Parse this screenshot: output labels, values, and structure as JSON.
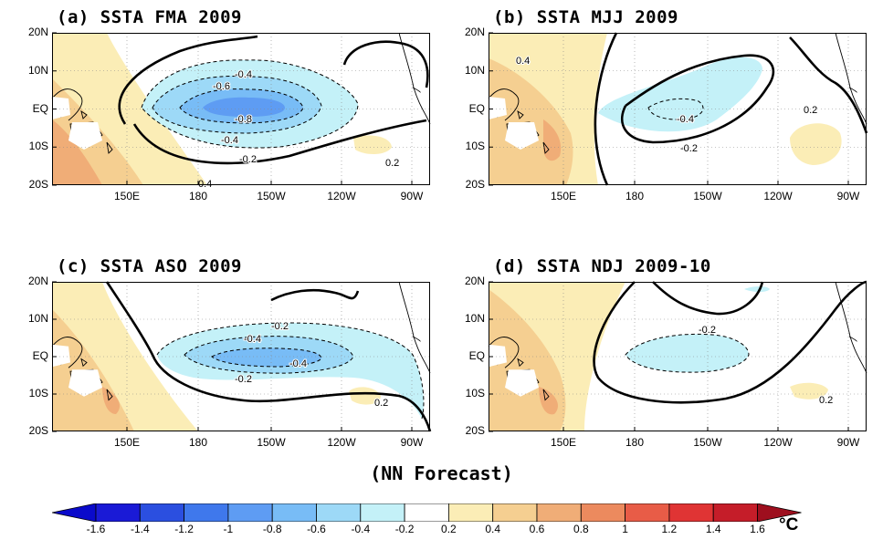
{
  "panels": [
    {
      "id": "a",
      "title": "(a) SSTA FMA 2009",
      "labels": [
        "-0.4",
        "-0.6",
        "-0.8",
        "-0.4",
        "-0.2",
        "0.2",
        "0.4"
      ]
    },
    {
      "id": "b",
      "title": "(b) SSTA MJJ 2009",
      "labels": [
        "0.4",
        "-0.4",
        "-0.2",
        "0.2"
      ]
    },
    {
      "id": "c",
      "title": "(c) SSTA ASO 2009",
      "labels": [
        "-0.2",
        "-0.4",
        "-0.4",
        "-0.2",
        "0.2"
      ]
    },
    {
      "id": "d",
      "title": "(d) SSTA NDJ 2009-10",
      "labels": [
        "-0.2",
        "0.2"
      ]
    }
  ],
  "lat_labels": [
    "20N",
    "10N",
    "EQ",
    "10S",
    "20S"
  ],
  "lon_labels": [
    "150E",
    "180",
    "150W",
    "120W",
    "90W"
  ],
  "footer": "(NN Forecast)",
  "colorbar": {
    "ticks": [
      "-1.6",
      "-1.4",
      "-1.2",
      "-1",
      "-0.8",
      "-0.6",
      "-0.4",
      "-0.2",
      "0.2",
      "0.4",
      "0.6",
      "0.8",
      "1",
      "1.2",
      "1.4",
      "1.6"
    ],
    "colors": [
      "#1a1ad6",
      "#2b4fe0",
      "#3f78ec",
      "#5e9cf3",
      "#78bcf6",
      "#9dd9f7",
      "#c4f1f8",
      "#ffffff",
      "#fbedb6",
      "#f5cf91",
      "#f0ad77",
      "#ec8a5e",
      "#e85c47",
      "#e03434",
      "#c51d29"
    ],
    "under_color": "#0a0acb",
    "over_color": "#9e0f1e",
    "unit": "°C"
  },
  "colors": {
    "land": "#ffffff",
    "warm1": "#fbedb6",
    "warm2": "#f5cf91",
    "warm3": "#f0ad77",
    "cool1": "#c4f1f8",
    "cool2": "#9dd9f7",
    "cool3": "#78bcf6",
    "cool4": "#5e9cf3"
  }
}
